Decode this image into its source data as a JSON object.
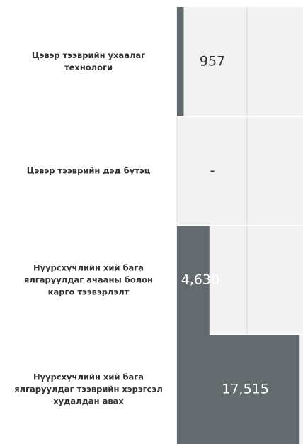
{
  "chart_data": {
    "type": "hbar",
    "categories": [
      "Цэвэр тээврийн ухаалаг технологи",
      "Цэвэр тээврийн дэд бүтэц",
      "Нүүрсхүчлийн хий бага ялгаруулдаг ачааны болон карго тээвэрлэлт",
      "Нүүрсхүчлийн хий бага ялгаруулдаг тээврийн хэрэгсэл худалдан авах"
    ],
    "values": [
      957,
      null,
      4630,
      17515
    ],
    "value_labels": [
      "957",
      "-",
      "4,630",
      "17,515"
    ],
    "color": "#636b6e",
    "xlim": [
      0,
      18000
    ],
    "xticks": [
      0,
      10000
    ],
    "grid": true
  }
}
